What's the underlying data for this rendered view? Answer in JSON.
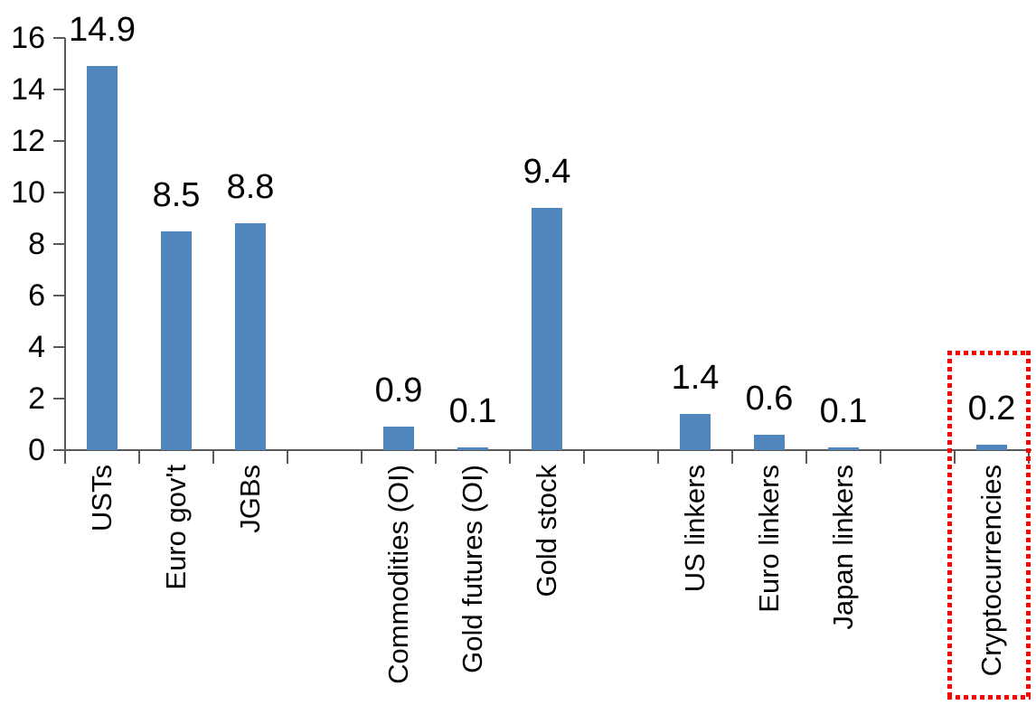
{
  "chart_data": {
    "type": "bar",
    "title": "",
    "xlabel": "",
    "ylabel": "",
    "ylim": [
      0,
      16
    ],
    "yticks": [
      0,
      2,
      4,
      6,
      8,
      10,
      12,
      14,
      16
    ],
    "grid": false,
    "legend": false,
    "bar_color": "#4f86bd",
    "axis_color": "#595959",
    "slots": [
      {
        "label": "USTs",
        "value": 14.9,
        "display": "14.9"
      },
      {
        "label": "Euro gov't",
        "value": 8.5,
        "display": "8.5"
      },
      {
        "label": "JGBs",
        "value": 8.8,
        "display": "8.8"
      },
      {
        "label": "",
        "value": null,
        "display": ""
      },
      {
        "label": "Commodities (OI)",
        "value": 0.9,
        "display": "0.9"
      },
      {
        "label": "Gold futures (OI)",
        "value": 0.1,
        "display": "0.1"
      },
      {
        "label": "Gold stock",
        "value": 9.4,
        "display": "9.4"
      },
      {
        "label": "",
        "value": null,
        "display": ""
      },
      {
        "label": "US linkers",
        "value": 1.4,
        "display": "1.4"
      },
      {
        "label": "Euro linkers",
        "value": 0.6,
        "display": "0.6"
      },
      {
        "label": "Japan linkers",
        "value": 0.1,
        "display": "0.1"
      },
      {
        "label": "",
        "value": null,
        "display": ""
      },
      {
        "label": "Cryptocurrencies",
        "value": 0.2,
        "display": "0.2"
      }
    ],
    "highlight": {
      "category": "Cryptocurrencies",
      "style": "dotted-box",
      "color": "#ff0000"
    }
  }
}
